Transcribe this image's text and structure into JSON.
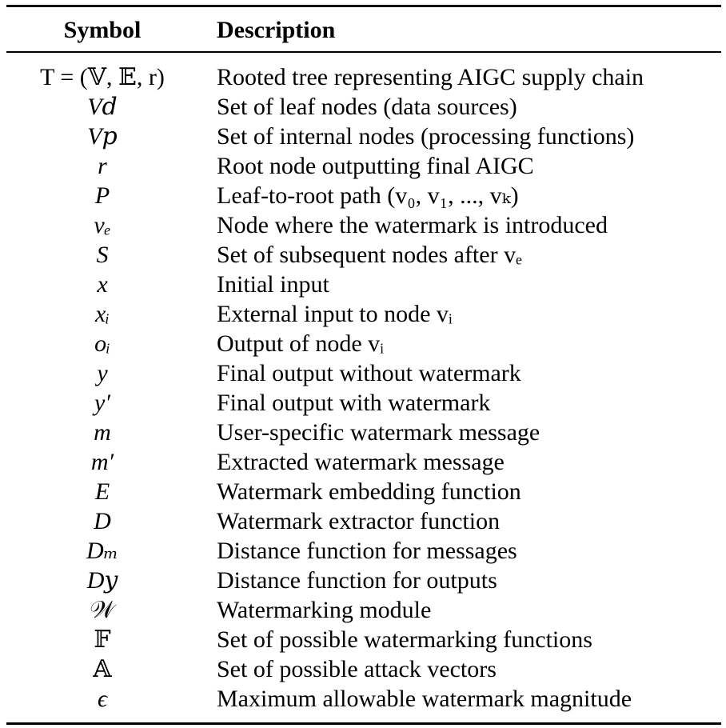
{
  "table": {
    "header": {
      "symbol": "Symbol",
      "description": "Description"
    },
    "rows": [
      {
        "symbol": "T = (𝕍, 𝔼, r)",
        "italic": false,
        "description": "Rooted tree representing AIGC supply chain"
      },
      {
        "symbol": "V𝑑",
        "italic": true,
        "description": "Set of leaf nodes (data sources)"
      },
      {
        "symbol": "V𝑝",
        "italic": true,
        "description": "Set of internal nodes (processing functions)"
      },
      {
        "symbol": "r",
        "italic": true,
        "description": "Root node outputting final AIGC"
      },
      {
        "symbol": "P",
        "italic": true,
        "description": "Leaf-to-root path (v₀, v₁, ..., vₖ)"
      },
      {
        "symbol": "vₑ",
        "italic": true,
        "description": "Node where the watermark is introduced"
      },
      {
        "symbol": "S",
        "italic": true,
        "description": "Set of subsequent nodes after vₑ"
      },
      {
        "symbol": "x",
        "italic": true,
        "description": "Initial input"
      },
      {
        "symbol": "xᵢ",
        "italic": true,
        "description": "External input to node vᵢ"
      },
      {
        "symbol": "oᵢ",
        "italic": true,
        "description": "Output of node vᵢ"
      },
      {
        "symbol": "y",
        "italic": true,
        "description": "Final output without watermark"
      },
      {
        "symbol": "y′",
        "italic": true,
        "description": "Final output with watermark"
      },
      {
        "symbol": "m",
        "italic": true,
        "description": "User-specific watermark message"
      },
      {
        "symbol": "m′",
        "italic": true,
        "description": "Extracted watermark message"
      },
      {
        "symbol": "E",
        "italic": true,
        "description": "Watermark embedding function"
      },
      {
        "symbol": "D",
        "italic": true,
        "description": "Watermark extractor function"
      },
      {
        "symbol": "Dₘ",
        "italic": true,
        "description": "Distance function for messages"
      },
      {
        "symbol": "D𝑦",
        "italic": true,
        "description": "Distance function for outputs"
      },
      {
        "symbol": "𝒲",
        "italic": false,
        "description": "Watermarking module"
      },
      {
        "symbol": "𝔽",
        "italic": false,
        "description": "Set of possible watermarking functions"
      },
      {
        "symbol": "𝔸",
        "italic": false,
        "description": "Set of possible attack vectors"
      },
      {
        "symbol": "ϵ",
        "italic": true,
        "description": "Maximum allowable watermark magnitude"
      }
    ]
  }
}
